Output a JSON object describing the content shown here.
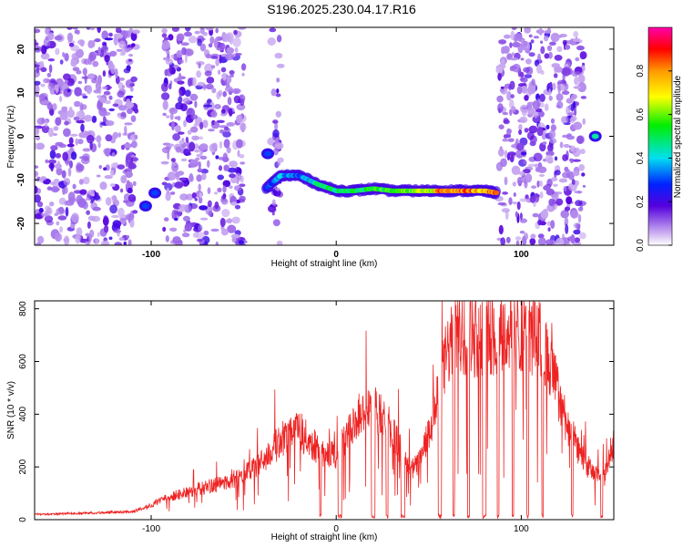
{
  "title": "S196.2025.230.04.17.R16",
  "chart_data": [
    {
      "type": "heatmap",
      "xlabel": "Height of straight line (km)",
      "ylabel": "Frequency (Hz)",
      "xlim": [
        -163,
        150
      ],
      "ylim": [
        -25,
        25
      ],
      "xticks": [
        -100,
        0,
        100
      ],
      "yticks": [
        -20,
        -10,
        0,
        10,
        20
      ],
      "colorbar": {
        "label": "Normalized spectral amplitude",
        "range": [
          0,
          1
        ],
        "ticks": [
          0.0,
          0.2,
          0.4,
          0.6,
          0.8
        ]
      },
      "noise_bands_km": [
        [
          -163,
          -108
        ],
        [
          -93,
          -50
        ],
        [
          -35,
          -30
        ],
        [
          88,
          134
        ]
      ],
      "ridge": {
        "x": [
          -38,
          -30,
          -20,
          -10,
          0,
          10,
          20,
          30,
          40,
          50,
          60,
          70,
          80,
          87
        ],
        "y": [
          -12,
          -9,
          -9,
          -11,
          -12.5,
          -12.5,
          -12,
          -12.5,
          -12.5,
          -12.5,
          -12.5,
          -12.5,
          -12.5,
          -13
        ],
        "amplitude": [
          0.3,
          0.4,
          0.35,
          0.5,
          0.55,
          0.55,
          0.6,
          0.6,
          0.65,
          0.7,
          0.95,
          0.9,
          0.9,
          0.95
        ]
      },
      "spots": [
        {
          "x": -103,
          "y": -16,
          "amplitude": 0.3
        },
        {
          "x": -98,
          "y": -13,
          "amplitude": 0.3
        },
        {
          "x": -37,
          "y": -4,
          "amplitude": 0.3
        },
        {
          "x": 140,
          "y": 0,
          "amplitude": 0.45
        }
      ]
    },
    {
      "type": "line",
      "xlabel": "Height of straight line (km)",
      "ylabel": "SNR (10 * v/v)",
      "xlim": [
        -163,
        150
      ],
      "ylim": [
        0,
        830
      ],
      "xticks": [
        -100,
        0,
        100
      ],
      "yticks": [
        0,
        200,
        400,
        600,
        800
      ],
      "series": [
        {
          "name": "SNR",
          "color": "#ee2222",
          "x": [
            -163,
            -150,
            -140,
            -130,
            -120,
            -110,
            -100,
            -90,
            -80,
            -70,
            -60,
            -50,
            -40,
            -35,
            -30,
            -25,
            -20,
            -15,
            -10,
            -5,
            0,
            5,
            10,
            15,
            20,
            25,
            30,
            35,
            40,
            45,
            50,
            55,
            60,
            65,
            70,
            75,
            80,
            85,
            90,
            95,
            100,
            105,
            110,
            115,
            120,
            125,
            130,
            135,
            140,
            145,
            150
          ],
          "y": [
            20,
            22,
            24,
            26,
            28,
            30,
            55,
            85,
            105,
            125,
            140,
            170,
            220,
            260,
            300,
            340,
            340,
            300,
            270,
            250,
            250,
            300,
            370,
            400,
            420,
            390,
            340,
            260,
            180,
            220,
            320,
            460,
            640,
            690,
            700,
            690,
            680,
            690,
            700,
            710,
            720,
            700,
            680,
            600,
            480,
            360,
            280,
            210,
            170,
            160,
            300
          ]
        }
      ]
    }
  ]
}
